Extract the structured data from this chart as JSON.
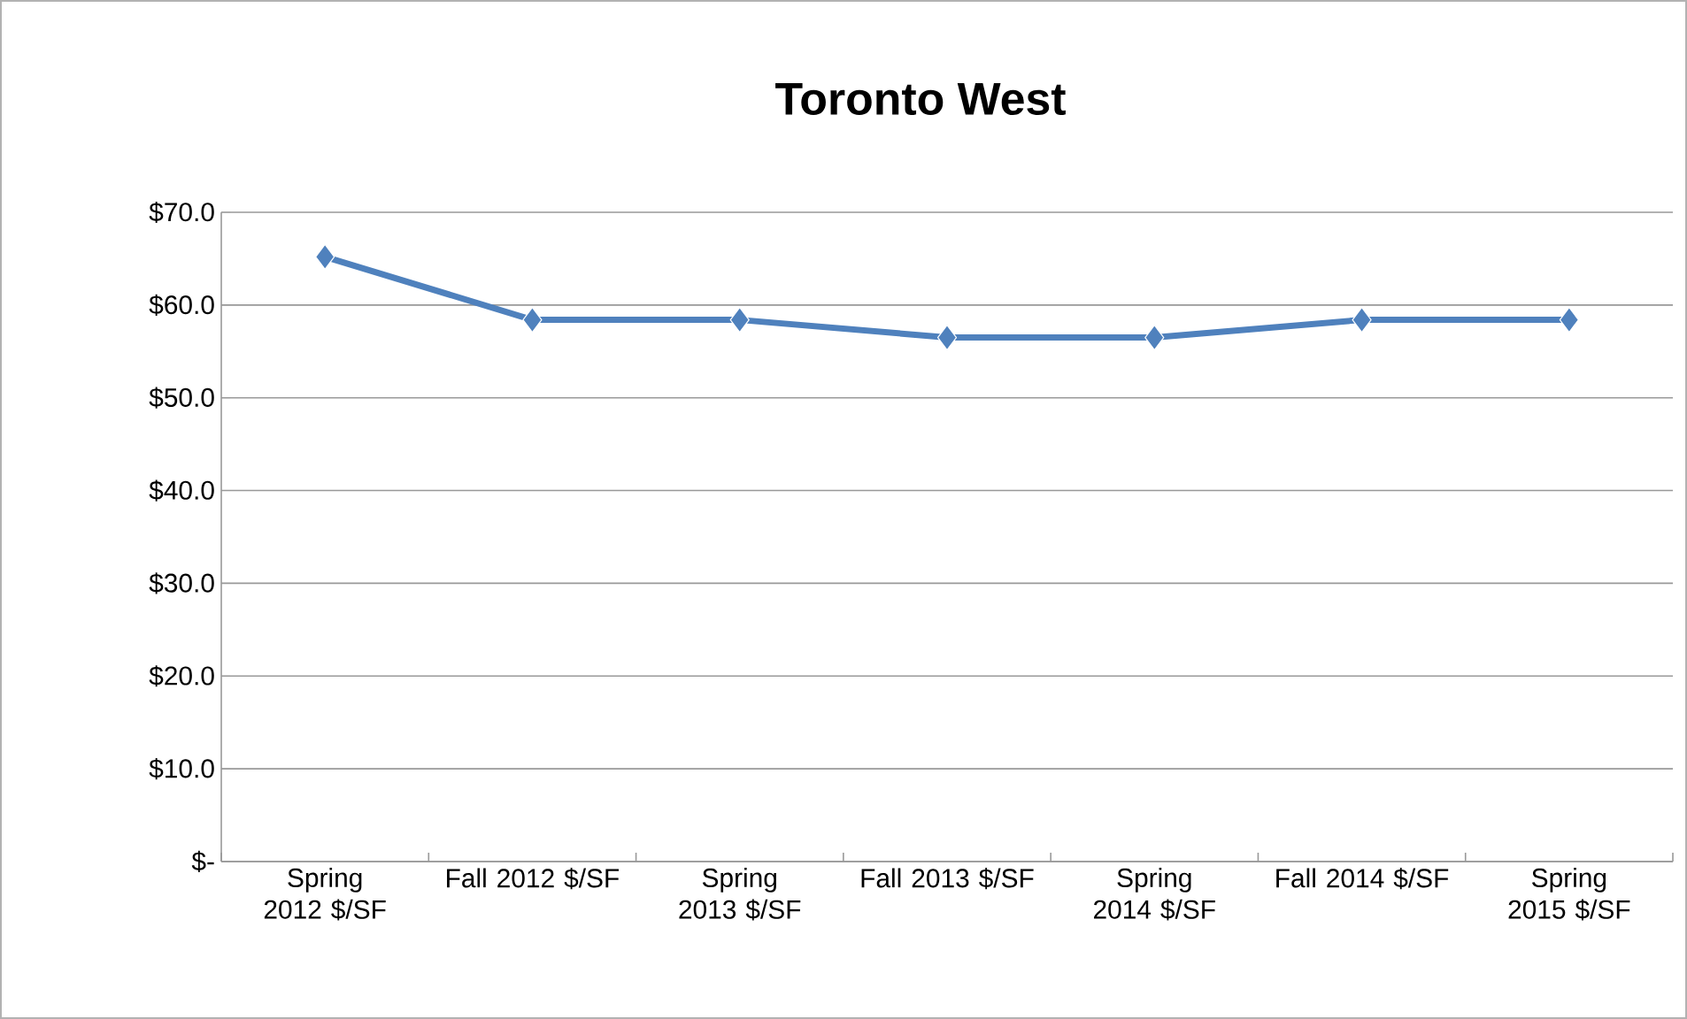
{
  "chart_data": {
    "type": "line",
    "title": "Toronto West",
    "categories": [
      "Spring 2012 $/SF",
      "Fall 2012 $/SF",
      "Spring 2013 $/SF",
      "Fall 2013 $/SF",
      "Spring 2014 $/SF",
      "Fall 2014 $/SF",
      "Spring 2015 $/SF"
    ],
    "series": [
      {
        "color": "#4f81bd",
        "values": [
          65.2,
          58.4,
          58.4,
          56.5,
          56.5,
          58.4,
          58.4
        ]
      }
    ],
    "ylim": [
      0,
      70
    ],
    "yticks": [
      {
        "value": 0,
        "label": "$-"
      },
      {
        "value": 10,
        "label": "$10.0"
      },
      {
        "value": 20,
        "label": "$20.0"
      },
      {
        "value": 30,
        "label": "$30.0"
      },
      {
        "value": 40,
        "label": "$40.0"
      },
      {
        "value": 50,
        "label": "$50.0"
      },
      {
        "value": 60,
        "label": "$60.0"
      },
      {
        "value": 70,
        "label": "$70.0"
      }
    ],
    "grid": "y",
    "marker": "diamond",
    "line_style": "solid"
  }
}
